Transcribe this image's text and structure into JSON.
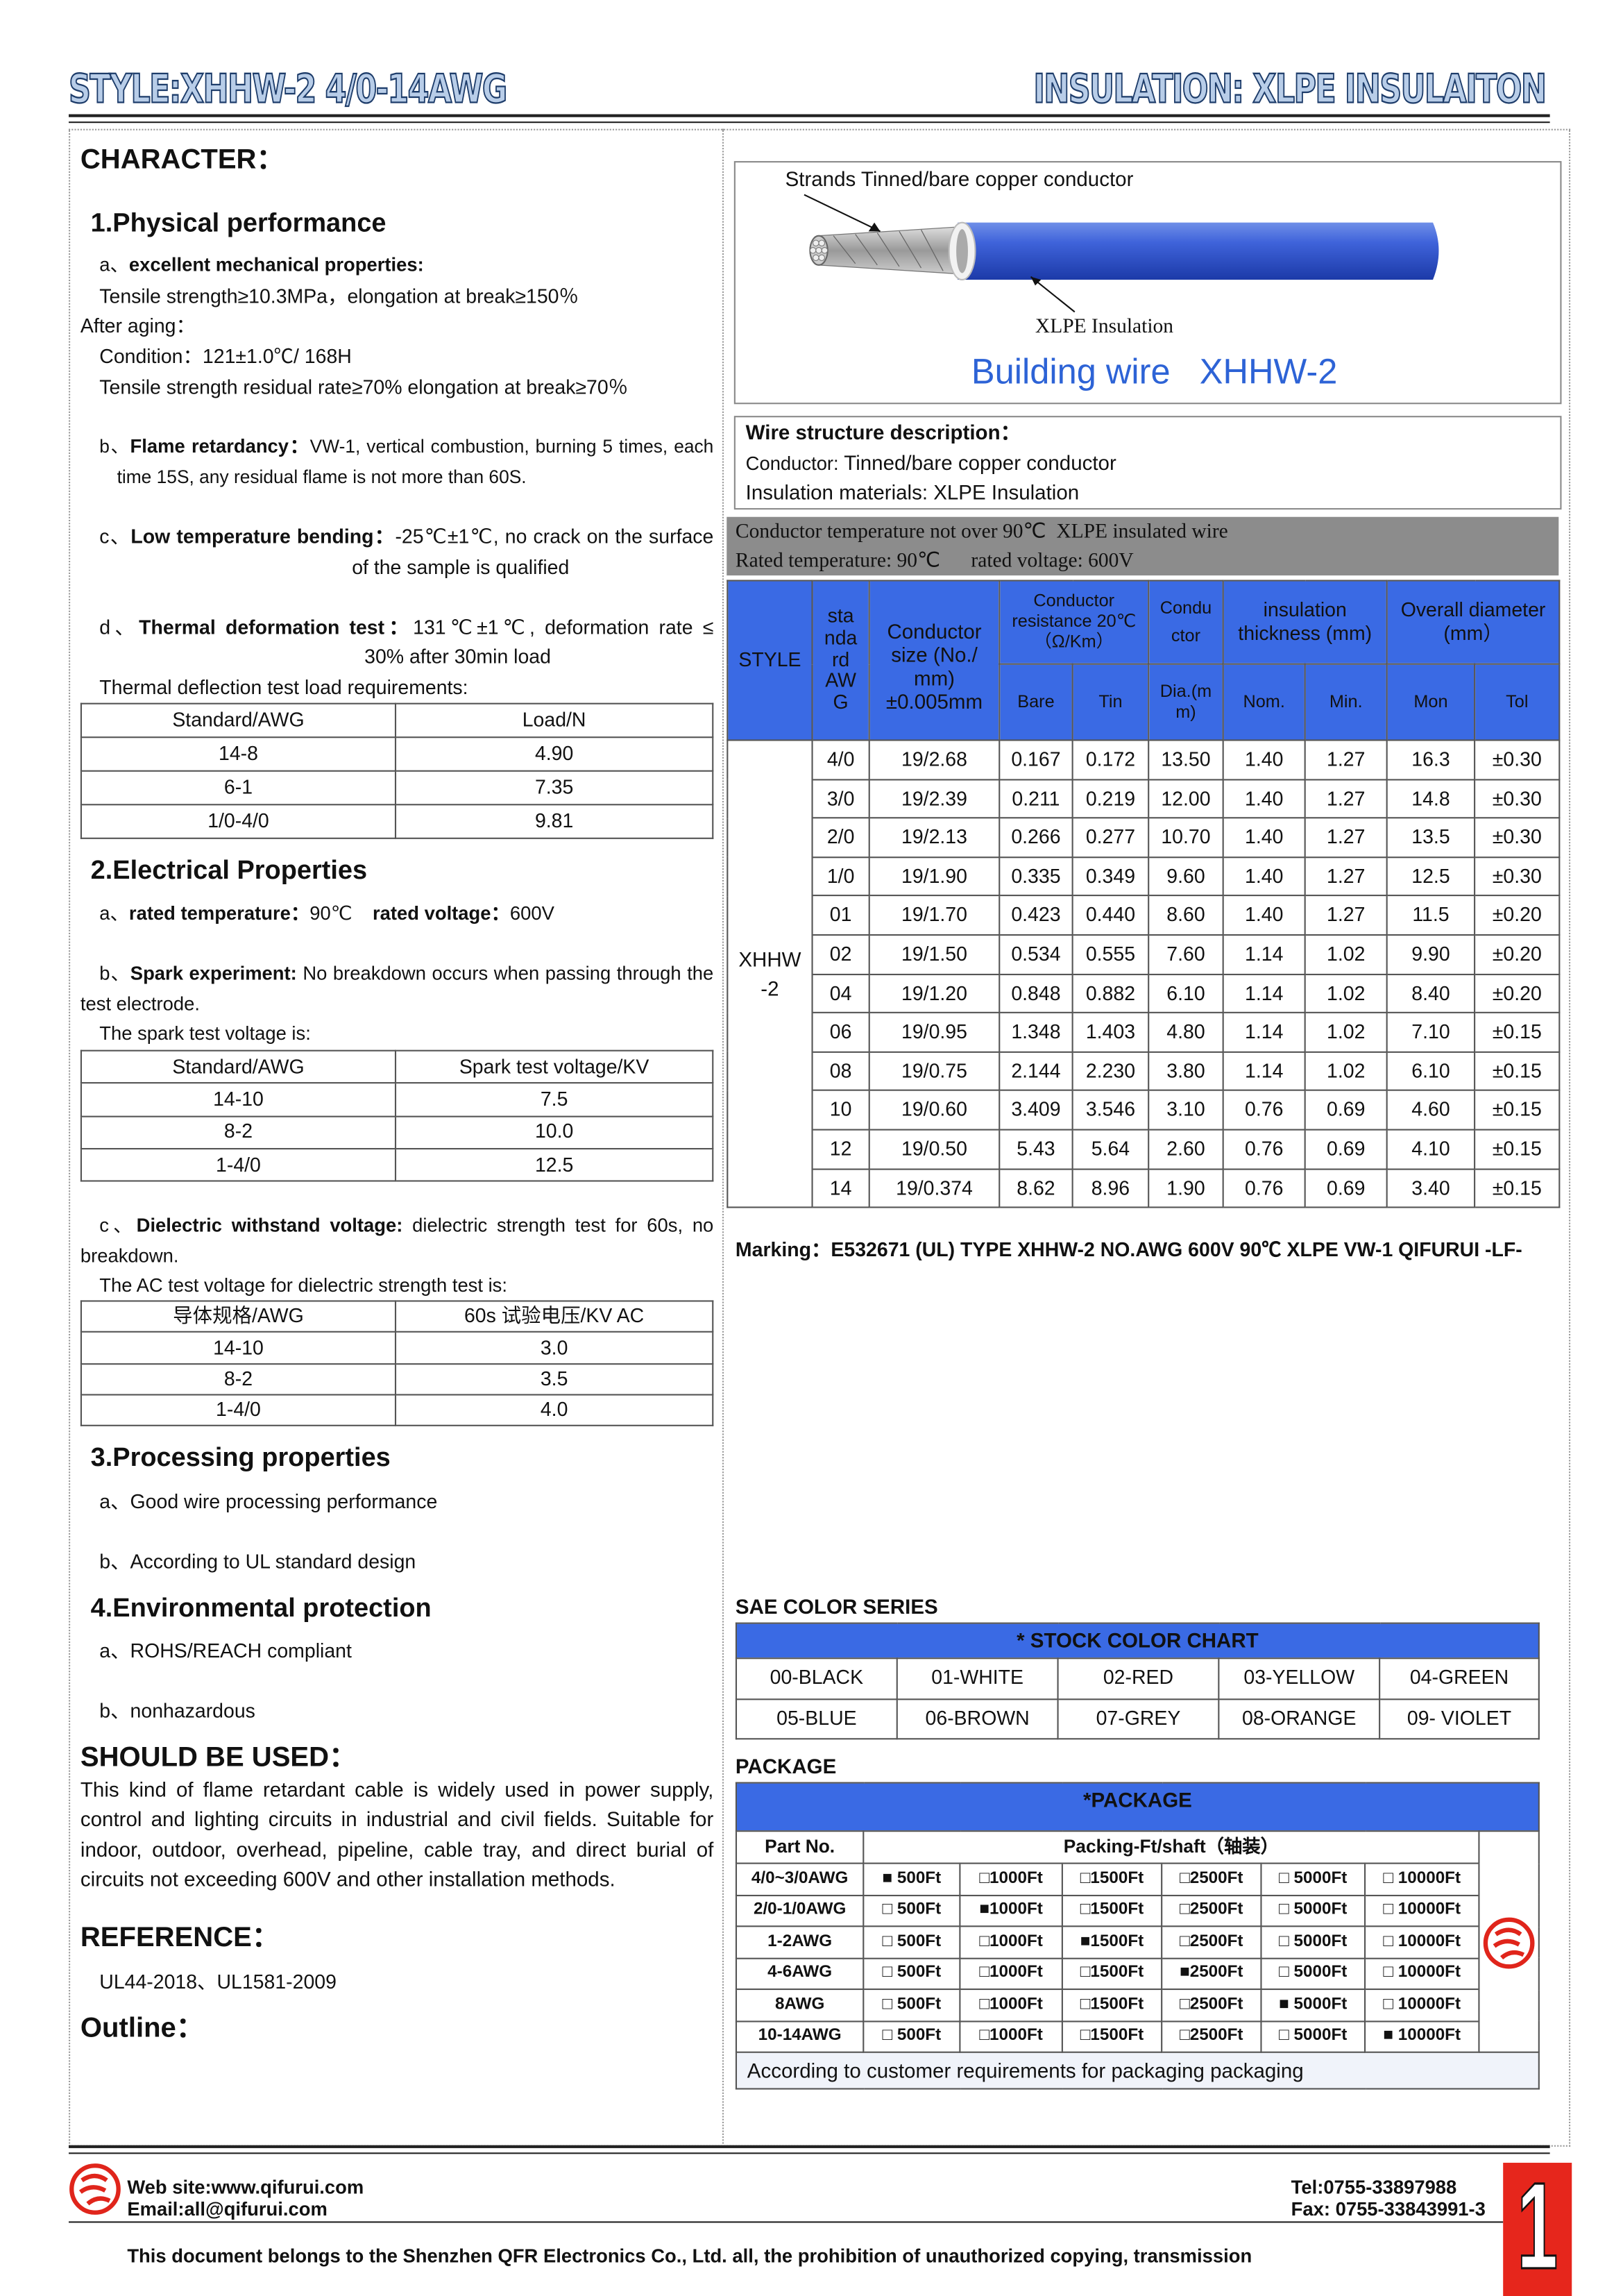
{
  "header": {
    "style": "STYLE:XHHW-2 4/0-14AWG",
    "insulation": "INSULATION: XLPE INSULAITON"
  },
  "character": {
    "title": "CHARACTER：",
    "physical": {
      "title": "1.Physical performance",
      "a": {
        "label": "a、",
        "title": "excellent mechanical properties:",
        "lines": [
          "Tensile strength≥10.3MPa，elongation at break≥150％",
          "After aging：",
          "Condition：121±1.0℃/ 168H",
          "Tensile strength residual rate≥70% elongation at break≥70％"
        ]
      },
      "b": {
        "label": "b、",
        "title": "Flame retardancy：",
        "text": "VW-1, vertical combustion, burning 5 times, each",
        "text2": "time 15S, any residual flame is not more than 60S."
      },
      "c": {
        "label": "c、",
        "title": "Low temperature bending：",
        "text": "-25℃±1℃, no crack on the surface",
        "text2": "of the sample is qualified"
      },
      "d": {
        "label": "d、",
        "title": "Thermal deformation test：",
        "text": "131℃±1℃, deformation rate ≤",
        "text2": "30% after 30min load"
      },
      "load_note": "Thermal deflection test load requirements:",
      "load_table": {
        "header": [
          "Standard/AWG",
          "Load/N"
        ],
        "rows": [
          [
            "14-8",
            "4.90"
          ],
          [
            "6-1",
            "7.35"
          ],
          [
            "1/0-4/0",
            "9.81"
          ]
        ]
      }
    },
    "electrical": {
      "title": "2.Electrical Properties",
      "a": {
        "label": "a、",
        "title1": "rated temperature：",
        "text1": "90℃",
        "title2": "rated voltage：",
        "text2": "600V"
      },
      "b": {
        "label": "b、",
        "title": "Spark experiment:",
        "text": "No breakdown occurs when passing through the",
        "text2": "test electrode."
      },
      "spark_note": "The spark test voltage is:",
      "spark_table": {
        "header": [
          "Standard/AWG",
          "Spark test voltage/KV"
        ],
        "rows": [
          [
            "14-10",
            "7.5"
          ],
          [
            "8-2",
            "10.0"
          ],
          [
            "1-4/0",
            "12.5"
          ]
        ]
      },
      "c": {
        "label": "c、",
        "title": "Dielectric withstand voltage:",
        "text": "dielectric strength test for 60s, no",
        "text2": "breakdown."
      },
      "ac_note": "The AC test voltage for dielectric strength test is:",
      "ac_table": {
        "header": [
          "导体规格/AWG",
          "60s 试验电压/KV AC"
        ],
        "rows": [
          [
            "14-10",
            "3.0"
          ],
          [
            "8-2",
            "3.5"
          ],
          [
            "1-4/0",
            "4.0"
          ]
        ]
      }
    },
    "processing": {
      "title": "3.Processing properties",
      "items": [
        "a、Good wire processing performance",
        "b、According to UL standard design"
      ]
    },
    "environmental": {
      "title": "4.Environmental protection",
      "items": [
        "a、ROHS/REACH compliant",
        "b、nonhazardous"
      ]
    }
  },
  "usage": {
    "title": "SHOULD BE USED：",
    "text": "This kind of flame retardant cable is widely used in power supply, control and lighting circuits in industrial and civil fields. Suitable for indoor, outdoor, overhead, pipeline, cable tray, and direct burial of circuits not exceeding 600V and other installation methods."
  },
  "reference": {
    "title": "REFERENCE：",
    "text": "UL44-2018、UL1581-2009"
  },
  "outline": {
    "title": "Outline："
  },
  "diagram": {
    "conductor_label": "Strands Tinned/bare copper conductor",
    "insulation_label": "XLPE Insulation",
    "caption": "Building wire   XHHW-2"
  },
  "structure": {
    "title": "Wire structure description：",
    "conductor_label": "Conductor: ",
    "conductor": "Tinned/bare copper conductor",
    "insulation": "Insulation materials: XLPE Insulation"
  },
  "spec_table": {
    "note1": "Conductor temperature not over 90℃  XLPE insulated wire",
    "note2": "Rated temperature: 90℃      rated voltage: 600V",
    "headers": {
      "style": "STYLE",
      "standard": [
        "sta",
        "nda",
        "rd",
        "AW",
        "G"
      ],
      "size": "Conductor size (No./ mm) ±0.005mm",
      "resistance": "Conductor resistance 20℃ （Ω/Km）",
      "conductor": [
        "Condu",
        "ctor"
      ],
      "thickness": "insulation thickness (mm)",
      "diameter": "Overall diameter (mm）",
      "bare": "Bare",
      "tin": "Tin",
      "dia": [
        "Dia.(m",
        "m)"
      ],
      "nom": "Nom.",
      "min": "Min.",
      "mon": "Mon",
      "tol": "Tol"
    },
    "style_value": [
      "XHHW",
      "-2"
    ],
    "rows": [
      [
        "4/0",
        "19/2.68",
        "0.167",
        "0.172",
        "13.50",
        "1.40",
        "1.27",
        "16.3",
        "±0.30"
      ],
      [
        "3/0",
        "19/2.39",
        "0.211",
        "0.219",
        "12.00",
        "1.40",
        "1.27",
        "14.8",
        "±0.30"
      ],
      [
        "2/0",
        "19/2.13",
        "0.266",
        "0.277",
        "10.70",
        "1.40",
        "1.27",
        "13.5",
        "±0.30"
      ],
      [
        "1/0",
        "19/1.90",
        "0.335",
        "0.349",
        "9.60",
        "1.40",
        "1.27",
        "12.5",
        "±0.30"
      ],
      [
        "01",
        "19/1.70",
        "0.423",
        "0.440",
        "8.60",
        "1.40",
        "1.27",
        "11.5",
        "±0.20"
      ],
      [
        "02",
        "19/1.50",
        "0.534",
        "0.555",
        "7.60",
        "1.14",
        "1.02",
        "9.90",
        "±0.20"
      ],
      [
        "04",
        "19/1.20",
        "0.848",
        "0.882",
        "6.10",
        "1.14",
        "1.02",
        "8.40",
        "±0.20"
      ],
      [
        "06",
        "19/0.95",
        "1.348",
        "1.403",
        "4.80",
        "1.14",
        "1.02",
        "7.10",
        "±0.15"
      ],
      [
        "08",
        "19/0.75",
        "2.144",
        "2.230",
        "3.80",
        "1.14",
        "1.02",
        "6.10",
        "±0.15"
      ],
      [
        "10",
        "19/0.60",
        "3.409",
        "3.546",
        "3.10",
        "0.76",
        "0.69",
        "4.60",
        "±0.15"
      ],
      [
        "12",
        "19/0.50",
        "5.43",
        "5.64",
        "2.60",
        "0.76",
        "0.69",
        "4.10",
        "±0.15"
      ],
      [
        "14",
        "19/0.374",
        "8.62",
        "8.96",
        "1.90",
        "0.76",
        "0.69",
        "3.40",
        "±0.15"
      ]
    ]
  },
  "marking": "Marking：E532671 (UL) TYPE XHHW-2 NO.AWG 600V 90℃  XLPE VW-1 QIFURUI -LF-",
  "colors": {
    "title": "SAE COLOR SERIES",
    "header": "* STOCK COLOR CHART",
    "rows": [
      [
        "00-BLACK",
        "01-WHITE",
        "02-RED",
        "03-YELLOW",
        "04-GREEN"
      ],
      [
        "05-BLUE",
        "06-BROWN",
        "07-GREY",
        "08-ORANGE",
        "09- VIOLET"
      ]
    ]
  },
  "package": {
    "title": "PACKAGE",
    "header": "*PACKAGE",
    "part_header": "Part No.",
    "packing_header": "Packing-Ft/shaft（轴装）",
    "rows": [
      [
        "4/0~3/0AWG",
        "■ 500Ft",
        "□1000Ft",
        "□1500Ft",
        "□2500Ft",
        "□ 5000Ft",
        "□ 10000Ft"
      ],
      [
        "2/0-1/0AWG",
        "□ 500Ft",
        "■1000Ft",
        "□1500Ft",
        "□2500Ft",
        "□ 5000Ft",
        "□ 10000Ft"
      ],
      [
        "1-2AWG",
        "□ 500Ft",
        "□1000Ft",
        "■1500Ft",
        "□2500Ft",
        "□ 5000Ft",
        "□ 10000Ft"
      ],
      [
        "4-6AWG",
        "□ 500Ft",
        "□1000Ft",
        "□1500Ft",
        "■2500Ft",
        "□ 5000Ft",
        "□ 10000Ft"
      ],
      [
        "8AWG",
        "□ 500Ft",
        "□1000Ft",
        "□1500Ft",
        "□2500Ft",
        "■ 5000Ft",
        "□ 10000Ft"
      ],
      [
        "10-14AWG",
        "□ 500Ft",
        "□1000Ft",
        "□1500Ft",
        "□2500Ft",
        "□ 5000Ft",
        "■ 10000Ft"
      ]
    ],
    "note": "According to customer requirements for packaging packaging"
  },
  "footer": {
    "web": "Web site:www.qifurui.com",
    "email": "Email:all@qifurui.com",
    "tel": "Tel:0755-33897988",
    "fax": "Fax: 0755-33843991-3",
    "page": "1",
    "copyright": "This document belongs to the Shenzhen QFR Electronics Co., Ltd. all, the prohibition of unauthorized copying, transmission"
  }
}
